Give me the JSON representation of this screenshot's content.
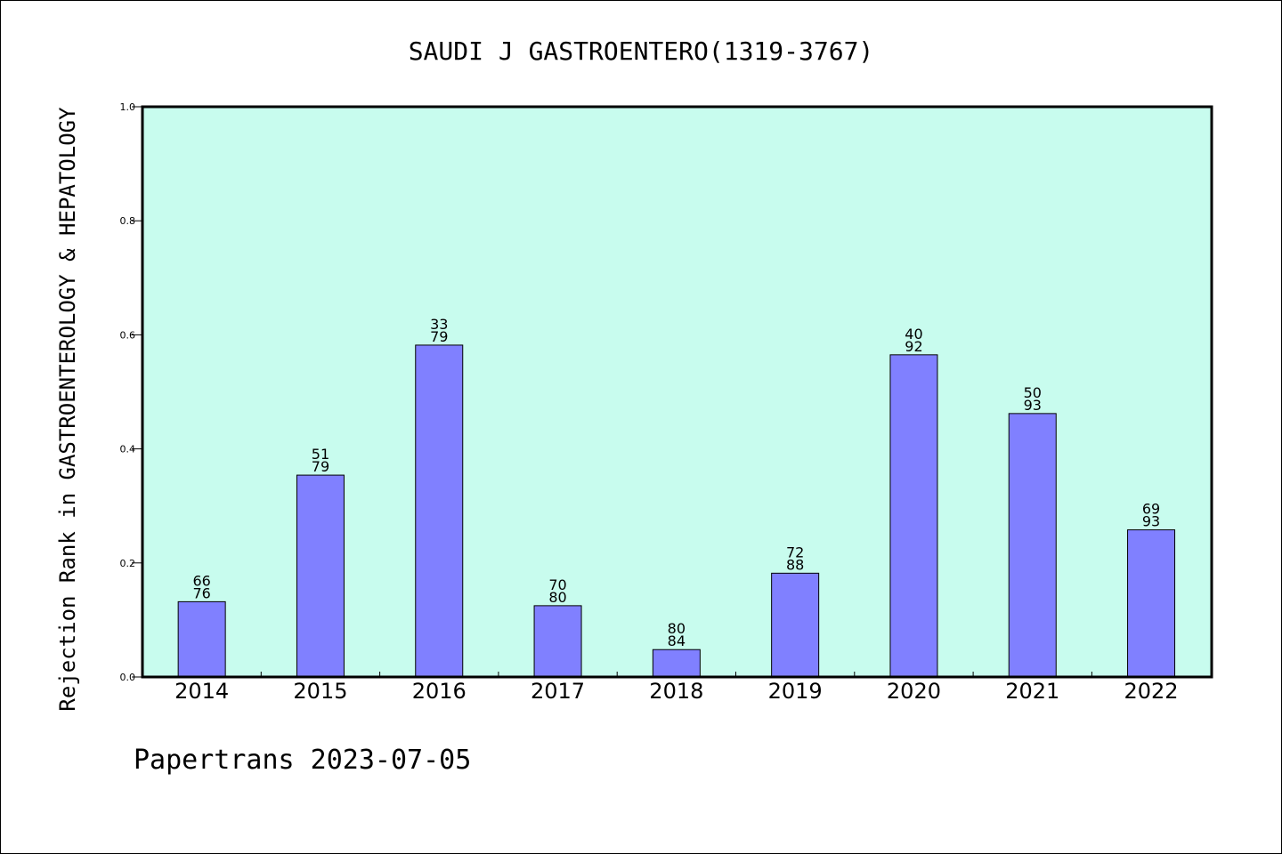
{
  "chart_data": {
    "type": "bar",
    "title": "SAUDI J GASTROENTERO(1319-3767)",
    "ylabel": "Rejection Rank in GASTROENTEROLOGY & HEPATOLOGY",
    "xlabel": "",
    "categories": [
      "2014",
      "2015",
      "2016",
      "2017",
      "2018",
      "2019",
      "2020",
      "2021",
      "2022"
    ],
    "values": [
      0.132,
      0.354,
      0.582,
      0.125,
      0.048,
      0.182,
      0.565,
      0.462,
      0.258
    ],
    "label_top": [
      "66",
      "51",
      "33",
      "70",
      "80",
      "72",
      "40",
      "50",
      "69"
    ],
    "label_bottom": [
      "76",
      "79",
      "79",
      "80",
      "84",
      "88",
      "92",
      "93",
      "93"
    ],
    "ylim": [
      0,
      1.0
    ],
    "yticks": [
      "0.0",
      "0.2",
      "0.4",
      "0.6",
      "0.8",
      "1.0"
    ],
    "grid": false,
    "plot_background": "#c8fcee",
    "bar_color": "#8080ff"
  },
  "footer": {
    "text": "Papertrans 2023-07-05"
  }
}
